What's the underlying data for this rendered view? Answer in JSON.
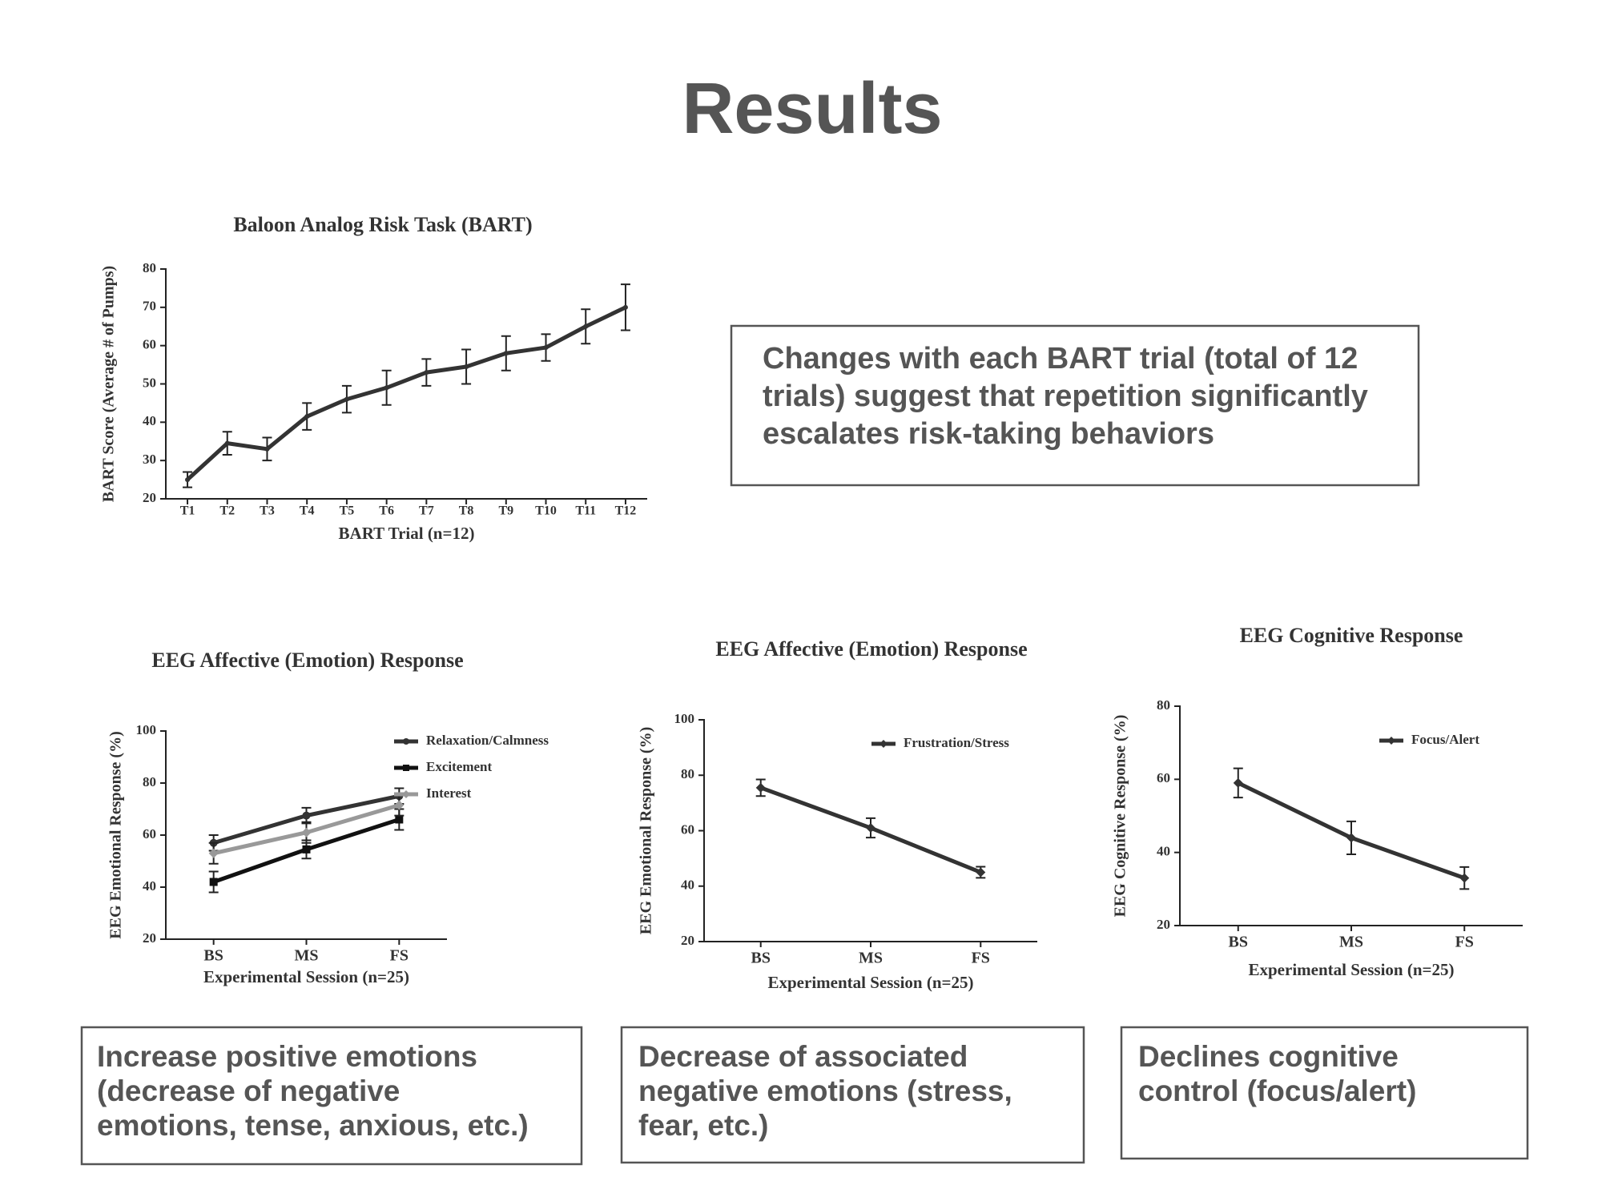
{
  "title": "Results",
  "notes": [
    {
      "lines": [
        "Changes with each BART trial (total of 12",
        "trials) suggest that repetition significantly",
        "escalates risk-taking behaviors"
      ]
    },
    {
      "lines": [
        "Increase positive emotions",
        "(decrease of negative",
        "emotions, tense, anxious, etc.)"
      ]
    },
    {
      "lines": [
        "Decrease of associated",
        "negative emotions (stress,",
        "fear, etc.)"
      ]
    },
    {
      "lines": [
        "Declines cognitive",
        "control  (focus/alert)"
      ]
    }
  ],
  "chart_data": [
    {
      "type": "line",
      "title": "Baloon Analog Risk Task (BART)",
      "x_label": "BART Trial (n=12)",
      "y_label": "BART Score (Average # of Pumps)",
      "categories": [
        "T1",
        "T2",
        "T3",
        "T4",
        "T5",
        "T6",
        "T7",
        "T8",
        "T9",
        "T10",
        "T11",
        "T12"
      ],
      "values": [
        25,
        34.5,
        33,
        41.5,
        46,
        49,
        53,
        54.5,
        58,
        59.5,
        65,
        70
      ],
      "errors": [
        2,
        3,
        3,
        3.5,
        3.5,
        4.5,
        3.5,
        4.5,
        4.5,
        3.5,
        4.5,
        6
      ],
      "color": "#333333",
      "ylim": [
        20,
        80
      ],
      "yticks": [
        20,
        30,
        40,
        50,
        60,
        70,
        80
      ]
    },
    {
      "type": "line",
      "title": "EEG Affective (Emotion) Response",
      "x_label": "Experimental Session (n=25)",
      "y_label": "EEG Emotional Response (%)",
      "categories": [
        "BS",
        "MS",
        "FS"
      ],
      "series": [
        {
          "name": "Relaxation/Calmness",
          "color": "#333333",
          "marker": "circle",
          "values": [
            57,
            67.5,
            75
          ],
          "errors": [
            3,
            3,
            3
          ]
        },
        {
          "name": "Excitement",
          "color": "#111111",
          "marker": "square",
          "values": [
            42,
            54.5,
            66
          ],
          "errors": [
            4,
            3.5,
            4
          ]
        },
        {
          "name": "Interest",
          "color": "#999999",
          "marker": "diamond",
          "values": [
            53,
            61,
            71.5
          ],
          "errors": [
            4,
            4,
            4
          ]
        }
      ],
      "ylim": [
        20,
        100
      ],
      "yticks": [
        20,
        40,
        60,
        80,
        100
      ],
      "legend": "upper right"
    },
    {
      "type": "line",
      "title": "EEG Affective (Emotion) Response",
      "x_label": "Experimental Session (n=25)",
      "y_label": "EEG Emotional Response (%)",
      "categories": [
        "BS",
        "MS",
        "FS"
      ],
      "series": [
        {
          "name": "Frustration/Stress",
          "color": "#333333",
          "marker": "diamond",
          "values": [
            75.5,
            61,
            45
          ],
          "errors": [
            3,
            3.5,
            2
          ]
        }
      ],
      "ylim": [
        20,
        100
      ],
      "yticks": [
        20,
        40,
        60,
        80,
        100
      ],
      "legend": "upper right"
    },
    {
      "type": "line",
      "title": "EEG Cognitive Response",
      "x_label": "Experimental Session (n=25)",
      "y_label": "EEG Cognitive Response (%)",
      "categories": [
        "BS",
        "MS",
        "FS"
      ],
      "series": [
        {
          "name": "Focus/Alert",
          "color": "#333333",
          "marker": "diamond",
          "values": [
            59,
            44,
            33
          ],
          "errors": [
            4,
            4.5,
            3
          ]
        }
      ],
      "ylim": [
        20,
        80
      ],
      "yticks": [
        20,
        40,
        60,
        80
      ],
      "legend": "upper right"
    }
  ]
}
